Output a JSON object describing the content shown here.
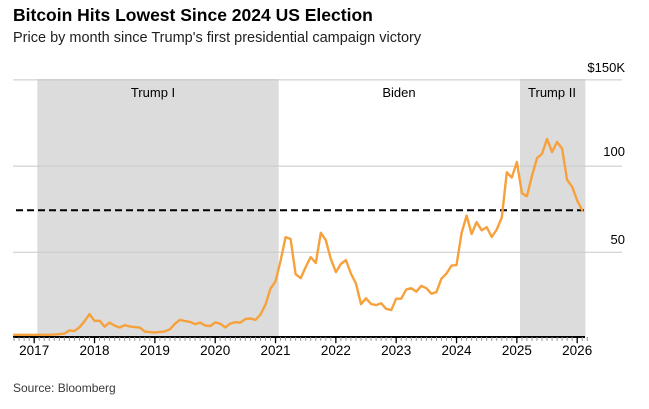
{
  "header": {
    "title": "Bitcoin Hits Lowest Since 2024 US Election",
    "subtitle": "Price by month since Trump's first presidential campaign victory"
  },
  "source": "Source: Bloomberg",
  "colors": {
    "line": "#F6A13C",
    "band": "#DCDCDC",
    "gridline": "#C8C8C8",
    "axis": "#000000",
    "minor_tick": "#8F8F8F",
    "reference_line": "#000000"
  },
  "chart_data": {
    "type": "line",
    "title": "Bitcoin Hits Lowest Since 2024 US Election",
    "subtitle": "Price by month since Trump's first presidential campaign victory",
    "unit": "USD thousands",
    "y_axis": {
      "min": 0,
      "max": 150,
      "ticks": [
        {
          "label": "$150K",
          "value": 150
        },
        {
          "label": "100",
          "value": 100
        },
        {
          "label": "50",
          "value": 50
        }
      ],
      "grid": true,
      "side": "right"
    },
    "x_axis": {
      "years": [
        "2017",
        "2018",
        "2019",
        "2020",
        "2021",
        "2022",
        "2023",
        "2024",
        "2025",
        "2026"
      ],
      "minor_ticks": "monthly"
    },
    "eras": [
      {
        "label": "Trump I",
        "start": "2017-01-20",
        "end": "2021-01-20",
        "shaded": true
      },
      {
        "label": "Biden",
        "start": "2021-01-20",
        "end": "2025-01-20",
        "shaded": false
      },
      {
        "label": "Trump II",
        "start": "2025-01-20",
        "end": "2026-02-20",
        "shaded": true
      }
    ],
    "reference_line": {
      "value": 74.4,
      "style": "dashed",
      "color": "#000000"
    },
    "series": [
      {
        "name": "Bitcoin price ($K, monthly)",
        "start_month": "2016-09",
        "values": [
          0.61,
          0.7,
          0.74,
          0.96,
          0.97,
          1.18,
          1.08,
          1.35,
          2.29,
          2.48,
          2.87,
          4.71,
          4.34,
          6.45,
          9.95,
          14.16,
          10.2,
          10.3,
          6.93,
          9.24,
          7.49,
          6.4,
          7.73,
          7.01,
          6.63,
          6.3,
          4.02,
          3.74,
          3.44,
          3.82,
          4.1,
          5.32,
          8.56,
          10.82,
          10.09,
          9.6,
          8.31,
          9.2,
          7.56,
          7.19,
          9.35,
          8.56,
          6.44,
          8.62,
          9.45,
          9.14,
          11.32,
          11.65,
          10.78,
          13.8,
          19.7,
          29.0,
          33.1,
          45.2,
          58.8,
          57.7,
          37.3,
          35.0,
          41.5,
          47.2,
          43.8,
          61.3,
          57.0,
          46.2,
          38.5,
          43.2,
          45.5,
          37.7,
          31.8,
          19.9,
          23.3,
          20.0,
          19.4,
          20.5,
          17.2,
          16.5,
          23.1,
          23.1,
          28.5,
          29.2,
          27.2,
          30.5,
          29.2,
          26.0,
          26.9,
          34.7,
          37.7,
          42.3,
          42.6,
          61.2,
          71.3,
          60.6,
          67.5,
          62.7,
          64.6,
          58.9,
          63.3,
          70.2,
          96.4,
          93.4,
          102.4,
          84.3,
          82.5,
          94.2,
          104.6,
          107.1,
          115.7,
          108.2,
          114.0,
          110.1,
          92.0,
          88.0,
          80.0,
          74.4
        ]
      }
    ]
  }
}
